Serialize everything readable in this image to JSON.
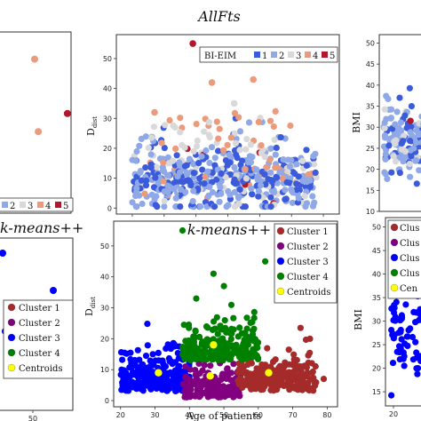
{
  "chart_data": [
    {
      "type": "scatter",
      "position": "top-left",
      "title": "",
      "xlabel": "",
      "ylabel": "",
      "legend": {
        "title": "",
        "entries": [
          "2",
          "3",
          "4",
          "5"
        ]
      },
      "points": [
        {
          "x": 0.5,
          "y": 0.85,
          "cat": "4"
        },
        {
          "x": 0.55,
          "y": 0.45,
          "cat": "4"
        },
        {
          "x": 0.95,
          "y": 0.55,
          "cat": "5"
        }
      ]
    },
    {
      "type": "scatter",
      "position": "top-center",
      "title": "AllFts",
      "xlabel": "",
      "ylabel": "D_dist",
      "ylabel_main": "D",
      "ylabel_sub": "dist",
      "xlim": [
        15,
        85
      ],
      "ylim": [
        -2,
        58
      ],
      "yticks": [
        0,
        10,
        20,
        30,
        40,
        50
      ],
      "legend": {
        "title": "BI-EIM",
        "entries": [
          "1",
          "2",
          "3",
          "4",
          "5"
        ]
      },
      "seed": 7,
      "notable_points": [
        {
          "x": 39,
          "y": 55,
          "cat": "5"
        },
        {
          "x": 45,
          "y": 42,
          "cat": "4"
        },
        {
          "x": 58,
          "y": 43,
          "cat": "4"
        },
        {
          "x": 27,
          "y": 32,
          "cat": "4"
        },
        {
          "x": 52,
          "y": 35,
          "cat": "3"
        }
      ]
    },
    {
      "type": "scatter",
      "position": "top-right",
      "title": "",
      "xlabel": "",
      "ylabel": "BMI",
      "ylim": [
        10,
        52
      ],
      "yticks": [
        10,
        15,
        20,
        25,
        30,
        35,
        40,
        45,
        50
      ],
      "legend": {
        "title": "",
        "entries": []
      }
    },
    {
      "type": "scatter",
      "position": "bottom-left",
      "title": "k-means++",
      "xlabel": "",
      "ylabel": "",
      "xticks": [
        50
      ],
      "legend": {
        "title": "",
        "entries": [
          "Cluster 1",
          "Cluster 2",
          "Cluster 3",
          "Cluster 4",
          "Centroids"
        ]
      }
    },
    {
      "type": "scatter",
      "position": "bottom-center",
      "title": "k-means++",
      "xlabel": "Age of patients",
      "ylabel": "D_dist",
      "ylabel_main": "D",
      "ylabel_sub": "dist",
      "xlim": [
        18,
        83
      ],
      "ylim": [
        -2,
        58
      ],
      "xticks": [
        20,
        30,
        40,
        50,
        60,
        70,
        80
      ],
      "yticks": [
        0,
        10,
        20,
        30,
        40,
        50
      ],
      "legend": {
        "title": "",
        "entries": [
          "Cluster 1",
          "Cluster 2",
          "Cluster 3",
          "Cluster 4",
          "Centroids"
        ]
      },
      "centroids": [
        {
          "x": 31,
          "y": 9
        },
        {
          "x": 46,
          "y": 8
        },
        {
          "x": 47,
          "y": 18
        },
        {
          "x": 63,
          "y": 9
        }
      ]
    },
    {
      "type": "scatter",
      "position": "bottom-right",
      "title": "",
      "xlabel": "",
      "ylabel": "BMI",
      "ylim": [
        12,
        52
      ],
      "yticks": [
        15,
        20,
        25,
        30,
        35,
        40,
        45,
        50
      ],
      "xticks": [
        20
      ],
      "legend": {
        "title": "",
        "entries": [
          "Clus",
          "Clus",
          "Clus",
          "Clus",
          "Cen"
        ]
      }
    }
  ],
  "colors": {
    "cat1": "#3b5bdb",
    "cat2": "#8fa8e8",
    "cat3": "#d9d9d9",
    "cat4": "#eb9a7c",
    "cat5": "#b2182b",
    "cluster1": "#a52a2a",
    "cluster2": "#800080",
    "cluster3": "#0000ff",
    "cluster4": "#008000",
    "centroid": "#ffff00"
  }
}
